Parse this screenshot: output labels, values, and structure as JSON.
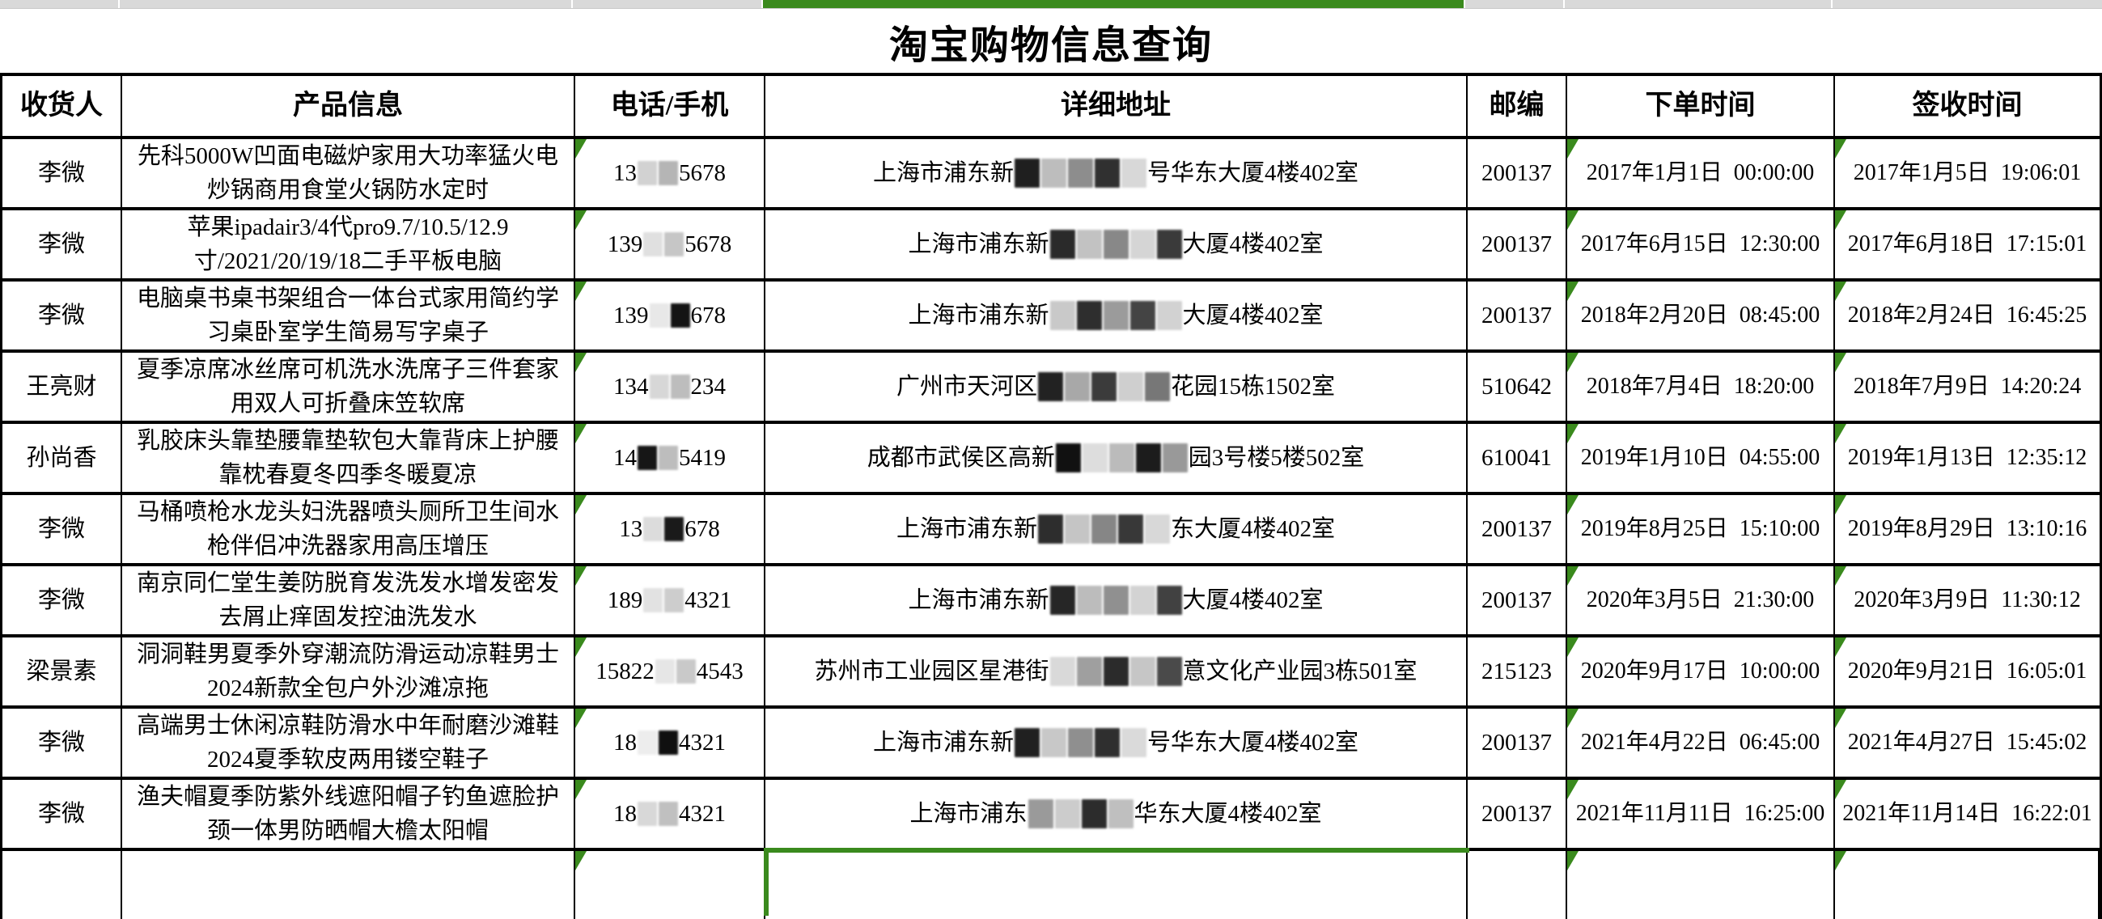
{
  "page": {
    "title": "淘宝购物信息查询"
  },
  "colors": {
    "accent_green": "#3a8a1d",
    "topbar_gray": "#d9d9d9",
    "border_black": "#000000"
  },
  "topbar": {
    "selected_column": "详细地址"
  },
  "table": {
    "headers": [
      "收货人",
      "产品信息",
      "电话/手机",
      "详细地址",
      "邮编",
      "下单时间",
      "签收时间"
    ],
    "rows": [
      {
        "recipient": "李微",
        "product": "先科5000W凹面电磁炉家用大功率猛火电炒锅商用食堂火锅防水定时",
        "phone": {
          "pre": "13",
          "blocks": [
            "#d2d2d2",
            "#b5b5b5"
          ],
          "post": "5678"
        },
        "address": {
          "pre": "上海市浦东新",
          "blocks": [
            "#1f1f1f",
            "#bdbdbd",
            "#8d8d8d",
            "#303030",
            "#d8d8d8"
          ],
          "post": "号华东大厦4楼402室"
        },
        "postal": "200137",
        "order_time": "2017年1月1日  00:00:00",
        "sign_time": "2017年1月5日  19:06:01"
      },
      {
        "recipient": "李微",
        "product": "苹果ipadair3/4代pro9.7/10.5/12.9寸/2021/20/19/18二手平板电脑",
        "phone": {
          "pre": "139",
          "blocks": [
            "#e0e0e0",
            "#c6c6c6"
          ],
          "post": "5678"
        },
        "address": {
          "pre": "上海市浦东新",
          "blocks": [
            "#2a2a2a",
            "#c2c2c2",
            "#888888",
            "#d5d5d5",
            "#3a3a3a"
          ],
          "post": "大厦4楼402室"
        },
        "postal": "200137",
        "order_time": "2017年6月15日  12:30:00",
        "sign_time": "2017年6月18日  17:15:01"
      },
      {
        "recipient": "李微",
        "product": "电脑桌书桌书架组合一体台式家用简约学习桌卧室学生简易写字桌子",
        "phone": {
          "pre": "139",
          "blocks": [
            "#e8e8e8",
            "#141414"
          ],
          "post": "678"
        },
        "address": {
          "pre": "上海市浦东新",
          "blocks": [
            "#c9c9c9",
            "#2e2e2e",
            "#9b9b9b",
            "#444444",
            "#d2d2d2"
          ],
          "post": "大厦4楼402室"
        },
        "postal": "200137",
        "order_time": "2018年2月20日  08:45:00",
        "sign_time": "2018年2月24日  16:45:25"
      },
      {
        "recipient": "王亮财",
        "product": "夏季凉席冰丝席可机洗水洗席子三件套家用双人可折叠床笠软席",
        "phone": {
          "pre": "134",
          "blocks": [
            "#d7d7d7",
            "#bdbdbd"
          ],
          "post": "234"
        },
        "address": {
          "pre": "广州市天河区",
          "blocks": [
            "#222222",
            "#a8a8a8",
            "#3b3b3b",
            "#cfcfcf",
            "#777777"
          ],
          "post": "花园15栋1502室"
        },
        "postal": "510642",
        "order_time": "2018年7月4日  18:20:00",
        "sign_time": "2018年7月9日  14:20:24"
      },
      {
        "recipient": "孙尚香",
        "product": "乳胶床头靠垫腰靠垫软包大靠背床上护腰靠枕春夏冬四季冬暖夏凉",
        "phone": {
          "pre": "14",
          "blocks": [
            "#161616",
            "#bdbdbd"
          ],
          "post": "5419"
        },
        "address": {
          "pre": "成都市武侯区高新",
          "blocks": [
            "#111111",
            "#dddddd",
            "#bbbbbb",
            "#1c1c1c",
            "#999999"
          ],
          "post": "园3号楼5楼502室"
        },
        "postal": "610041",
        "order_time": "2019年1月10日  04:55:00",
        "sign_time": "2019年1月13日  12:35:12"
      },
      {
        "recipient": "李微",
        "product": "马桶喷枪水龙头妇洗器喷头厕所卫生间水枪伴侣冲洗器家用高压增压",
        "phone": {
          "pre": "13",
          "blocks": [
            "#dcdcdc",
            "#1a1a1a"
          ],
          "post": "678"
        },
        "address": {
          "pre": "上海市浦东新",
          "blocks": [
            "#2d2d2d",
            "#c5c5c5",
            "#868686",
            "#383838",
            "#d8d8d8"
          ],
          "post": "东大厦4楼402室"
        },
        "postal": "200137",
        "order_time": "2019年8月25日  15:10:00",
        "sign_time": "2019年8月29日  13:10:16"
      },
      {
        "recipient": "李微",
        "product": "南京同仁堂生姜防脱育发洗发水增发密发去屑止痒固发控油洗发水",
        "phone": {
          "pre": "189",
          "blocks": [
            "#e2e2e2",
            "#cdcdcd"
          ],
          "post": "4321"
        },
        "address": {
          "pre": "上海市浦东新",
          "blocks": [
            "#262626",
            "#bcbcbc",
            "#909090",
            "#d3d3d3",
            "#414141"
          ],
          "post": "大厦4楼402室"
        },
        "postal": "200137",
        "order_time": "2020年3月5日  21:30:00",
        "sign_time": "2020年3月9日  11:30:12"
      },
      {
        "recipient": "梁景素",
        "product": "洞洞鞋男夏季外穿潮流防滑运动凉鞋男士2024新款全包户外沙滩凉拖",
        "phone": {
          "pre": "15822",
          "blocks": [
            "#e6e6e6",
            "#c9c9c9"
          ],
          "post": "4543"
        },
        "address": {
          "pre": "苏州市工业园区星港街",
          "blocks": [
            "#d9d9d9",
            "#9f9f9f",
            "#2b2b2b",
            "#c6c6c6",
            "#4a4a4a"
          ],
          "post": "意文化产业园3栋501室"
        },
        "postal": "215123",
        "order_time": "2020年9月17日  10:00:00",
        "sign_time": "2020年9月21日  16:05:01"
      },
      {
        "recipient": "李微",
        "product": "高端男士休闲凉鞋防滑水中年耐磨沙滩鞋2024夏季软皮两用镂空鞋子",
        "phone": {
          "pre": "18",
          "blocks": [
            "#ededed",
            "#101010"
          ],
          "post": "4321"
        },
        "address": {
          "pre": "上海市浦东新",
          "blocks": [
            "#202020",
            "#c8c8c8",
            "#8f8f8f",
            "#2f2f2f",
            "#dadada"
          ],
          "post": "号华东大厦4楼402室"
        },
        "postal": "200137",
        "order_time": "2021年4月22日  06:45:00",
        "sign_time": "2021年4月27日  15:45:02"
      },
      {
        "recipient": "李微",
        "product": "渔夫帽夏季防紫外线遮阳帽子钓鱼遮脸护颈一体男防晒帽大檐太阳帽",
        "phone": {
          "pre": "18",
          "blocks": [
            "#d8d8d8",
            "#c0c0c0"
          ],
          "post": "4321"
        },
        "address": {
          "pre": "上海市浦东",
          "blocks": [
            "#9a9a9a",
            "#cccccc",
            "#2c2c2c",
            "#bfbfbf"
          ],
          "post": "华东大厦4楼402室"
        },
        "postal": "200137",
        "order_time": "2021年11月11日  16:25:00",
        "sign_time": "2021年11月14日  16:22:01"
      }
    ]
  }
}
